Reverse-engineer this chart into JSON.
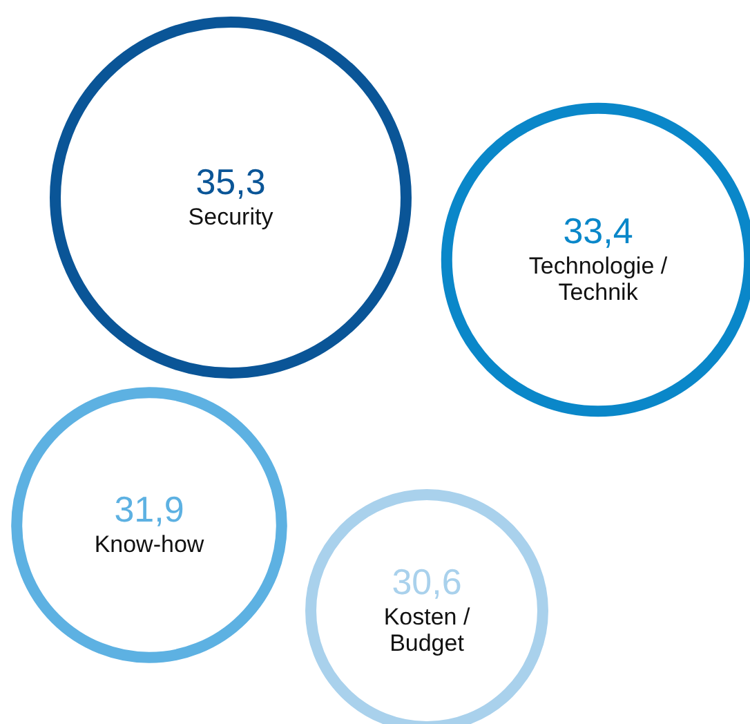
{
  "chart_data": {
    "type": "other",
    "categories": [
      "Security",
      "Technologie / Technik",
      "Know-how",
      "Kosten / Budget"
    ],
    "values": [
      35.3,
      33.4,
      31.9,
      30.6
    ],
    "value_labels": [
      "35,3",
      "33,4",
      "31,9",
      "30,6"
    ],
    "colors": [
      "#0a5597",
      "#0a87c9",
      "#5db1e2",
      "#a9d1ec"
    ]
  }
}
